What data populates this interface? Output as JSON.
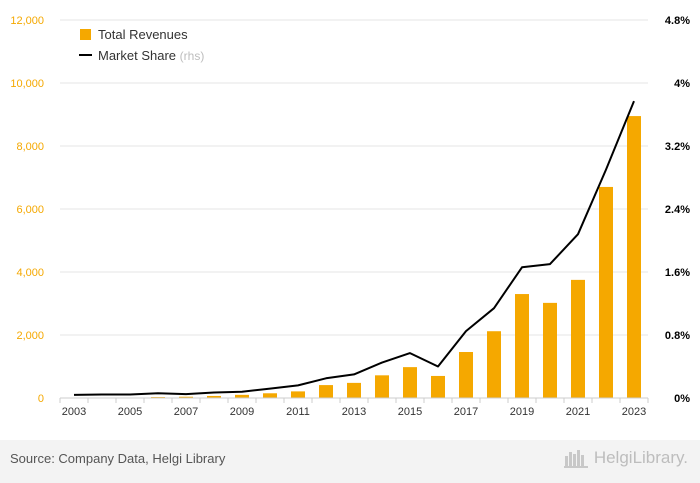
{
  "chart_data": {
    "type": "bar+line",
    "categories": [
      "2003",
      "2004",
      "2005",
      "2006",
      "2007",
      "2008",
      "2009",
      "2010",
      "2011",
      "2012",
      "2013",
      "2014",
      "2015",
      "2016",
      "2017",
      "2018",
      "2019",
      "2020",
      "2021",
      "2022",
      "2023"
    ],
    "x_tick_labels": [
      "2003",
      "2005",
      "2007",
      "2009",
      "2011",
      "2013",
      "2015",
      "2017",
      "2019",
      "2021",
      "2023"
    ],
    "series": [
      {
        "name": "Total Revenues",
        "kind": "bar",
        "axis": "left",
        "color": "#f5a800",
        "values": [
          5,
          10,
          15,
          30,
          40,
          65,
          100,
          150,
          210,
          410,
          480,
          720,
          980,
          700,
          1460,
          2120,
          3300,
          3020,
          3750,
          6700,
          8950
        ]
      },
      {
        "name": "Market Share",
        "name_suffix": "(rhs)",
        "kind": "line",
        "axis": "right",
        "color": "#000000",
        "values": [
          0.04,
          0.045,
          0.045,
          0.06,
          0.05,
          0.07,
          0.08,
          0.12,
          0.16,
          0.25,
          0.3,
          0.45,
          0.57,
          0.4,
          0.85,
          1.14,
          1.66,
          1.7,
          2.08,
          2.9,
          3.77
        ]
      }
    ],
    "y_left": {
      "min": 0,
      "max": 12000,
      "ticks": [
        "0",
        "2,000",
        "4,000",
        "6,000",
        "8,000",
        "10,000",
        "12,000"
      ]
    },
    "y_right": {
      "min": 0,
      "max": 4.8,
      "ticks": [
        "0%",
        "0.8%",
        "1.6%",
        "2.4%",
        "3.2%",
        "4%",
        "4.8%"
      ]
    },
    "legend_position": "top-left",
    "grid": "horizontal"
  },
  "footer": {
    "source": "Source: Company Data, Helgi Library",
    "brand": "HelgiLibrary."
  },
  "colors": {
    "bar": "#f5a800",
    "line": "#000000",
    "left_axis_text": "#f5a800",
    "grid": "#e6e6e6",
    "footer_bg": "#f3f3f3"
  }
}
